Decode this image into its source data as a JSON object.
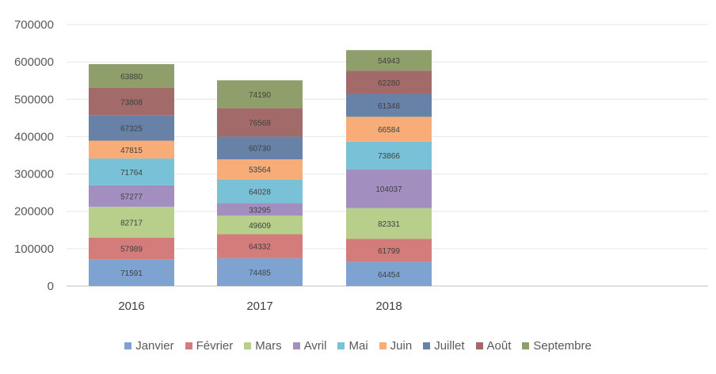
{
  "chart_data": {
    "type": "bar",
    "stacked": true,
    "title": "",
    "xlabel": "",
    "ylabel": "",
    "ylim": [
      0,
      700000
    ],
    "yticks": [
      0,
      100000,
      200000,
      300000,
      400000,
      500000,
      600000,
      700000
    ],
    "ytick_labels": [
      "0",
      "100000",
      "200000",
      "300000",
      "400000",
      "500000",
      "600000",
      "700000"
    ],
    "grid": true,
    "legend_position": "bottom",
    "categories": [
      "2016",
      "2017",
      "2018"
    ],
    "series": [
      {
        "name": "Janvier",
        "color": "#7ea3d1",
        "values": [
          71591,
          74485,
          64454
        ]
      },
      {
        "name": "Février",
        "color": "#d47b7b",
        "values": [
          57989,
          64332,
          61799
        ]
      },
      {
        "name": "Mars",
        "color": "#b7cf8a",
        "values": [
          82717,
          49609,
          82331
        ]
      },
      {
        "name": "Avril",
        "color": "#a28fc0",
        "values": [
          57277,
          33295,
          104037
        ]
      },
      {
        "name": "Mai",
        "color": "#78c1d6",
        "values": [
          71764,
          64028,
          73866
        ]
      },
      {
        "name": "Juin",
        "color": "#f8ad78",
        "values": [
          47815,
          53564,
          66584
        ]
      },
      {
        "name": "Juillet",
        "color": "#6782a6",
        "values": [
          67325,
          60730,
          61348
        ]
      },
      {
        "name": "Août",
        "color": "#a36a6a",
        "values": [
          73808,
          76568,
          62280
        ]
      },
      {
        "name": "Septembre",
        "color": "#8e9f6c",
        "values": [
          63880,
          74190,
          54943
        ]
      }
    ]
  }
}
